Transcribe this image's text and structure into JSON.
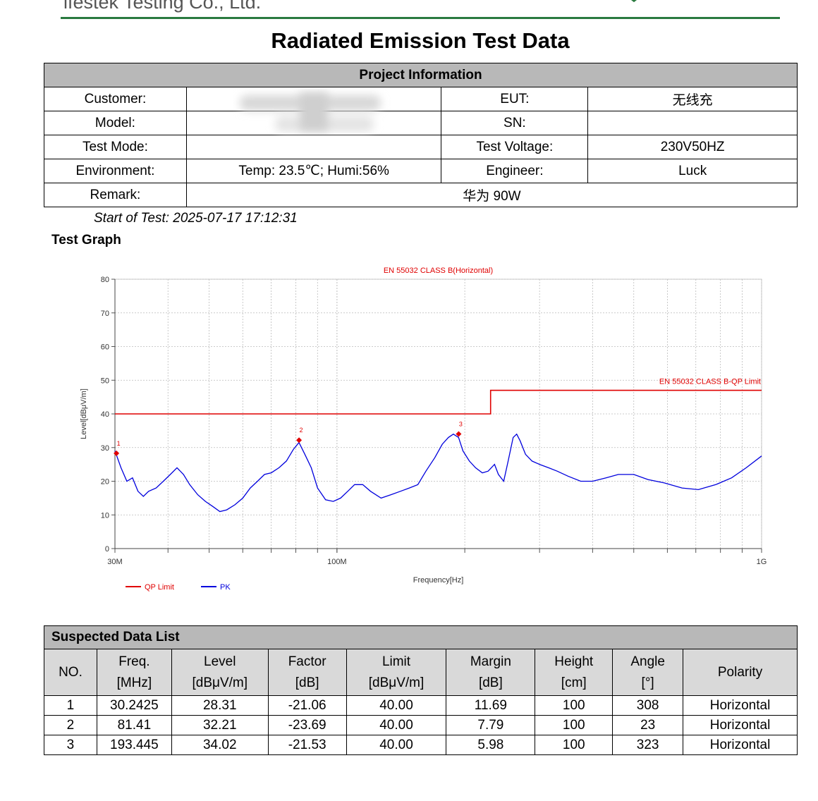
{
  "header": {
    "company": "ifestek Testing Co., Ltd.",
    "title": "Radiated Emission Test Data"
  },
  "project": {
    "heading": "Project Information",
    "customer_label": "Customer:",
    "customer_value": "",
    "eut_label": "EUT:",
    "eut_value": "无线充",
    "model_label": "Model:",
    "model_value": "",
    "sn_label": "SN:",
    "sn_value": "",
    "test_mode_label": "Test Mode:",
    "test_mode_value": "",
    "test_voltage_label": "Test Voltage:",
    "test_voltage_value": "230V50HZ",
    "environment_label": "Environment:",
    "environment_value": "Temp: 23.5℃; Humi:56%",
    "engineer_label": "Engineer:",
    "engineer_value": "Luck",
    "remark_label": "Remark:",
    "remark_value": "华为 90W"
  },
  "start_of_test": "Start of Test: 2025-07-17 17:12:31",
  "graph_title": "Test Graph",
  "chart_data": {
    "type": "line",
    "title": "EN 55032 CLASS B(Horizontal)",
    "xlabel": "Frequency[Hz]",
    "ylabel": "Level[dBμV/m]",
    "x_scale": "log",
    "xlim_mhz": [
      30,
      1000
    ],
    "ylim": [
      0,
      80
    ],
    "yticks": [
      0,
      10,
      20,
      30,
      40,
      50,
      60,
      70,
      80
    ],
    "x_tick_labels": [
      {
        "mhz": 30,
        "label": "30M"
      },
      {
        "mhz": 100,
        "label": "100M"
      },
      {
        "mhz": 1000,
        "label": "1G"
      }
    ],
    "limit_label": "EN 55032 CLASS B-QP Limit",
    "grid": true,
    "legend_position": "bottom-left",
    "series": [
      {
        "name": "QP Limit",
        "color": "#e00000",
        "points": [
          [
            30,
            40
          ],
          [
            230,
            40
          ],
          [
            230,
            47
          ],
          [
            1000,
            47
          ]
        ]
      },
      {
        "name": "PK",
        "color": "#0000dd",
        "points": [
          [
            30,
            29
          ],
          [
            31,
            24
          ],
          [
            32,
            20
          ],
          [
            33,
            21
          ],
          [
            34,
            17
          ],
          [
            35,
            15.5
          ],
          [
            36,
            17
          ],
          [
            37.5,
            18
          ],
          [
            39,
            20
          ],
          [
            40.5,
            22
          ],
          [
            42,
            24
          ],
          [
            43.5,
            22
          ],
          [
            45,
            19
          ],
          [
            47,
            16
          ],
          [
            49,
            14
          ],
          [
            51,
            12.5
          ],
          [
            53,
            11
          ],
          [
            55,
            11.5
          ],
          [
            57.5,
            13
          ],
          [
            60,
            15
          ],
          [
            62.5,
            18
          ],
          [
            65,
            20
          ],
          [
            67.5,
            22
          ],
          [
            70,
            22.5
          ],
          [
            73,
            24
          ],
          [
            76,
            26
          ],
          [
            79,
            29.5
          ],
          [
            81.4,
            31.5
          ],
          [
            84,
            28
          ],
          [
            87,
            24
          ],
          [
            90,
            18
          ],
          [
            94,
            14.5
          ],
          [
            98,
            14
          ],
          [
            102,
            15
          ],
          [
            106,
            17
          ],
          [
            110,
            19
          ],
          [
            115,
            19
          ],
          [
            120,
            17
          ],
          [
            127,
            15
          ],
          [
            134,
            16
          ],
          [
            141,
            17
          ],
          [
            148,
            18
          ],
          [
            155,
            19
          ],
          [
            162,
            23
          ],
          [
            170,
            27
          ],
          [
            177,
            31
          ],
          [
            183,
            33
          ],
          [
            188,
            34
          ],
          [
            193.4,
            33
          ],
          [
            198,
            29
          ],
          [
            205,
            26
          ],
          [
            212,
            24
          ],
          [
            220,
            22.5
          ],
          [
            227,
            23
          ],
          [
            235,
            25
          ],
          [
            240,
            22
          ],
          [
            247,
            20
          ],
          [
            253,
            26
          ],
          [
            260,
            33
          ],
          [
            265,
            34
          ],
          [
            270,
            32
          ],
          [
            278,
            28
          ],
          [
            288,
            26
          ],
          [
            300,
            25
          ],
          [
            315,
            24
          ],
          [
            330,
            23
          ],
          [
            350,
            21.5
          ],
          [
            375,
            20
          ],
          [
            400,
            20
          ],
          [
            430,
            21
          ],
          [
            460,
            22
          ],
          [
            500,
            22
          ],
          [
            540,
            20.5
          ],
          [
            590,
            19.5
          ],
          [
            650,
            18
          ],
          [
            710,
            17.5
          ],
          [
            780,
            19
          ],
          [
            850,
            21
          ],
          [
            920,
            24
          ],
          [
            1000,
            27.5
          ]
        ]
      }
    ],
    "markers": [
      {
        "label": "1",
        "freq_mhz": 30.2425,
        "level": 28.31
      },
      {
        "label": "2",
        "freq_mhz": 81.41,
        "level": 32.21
      },
      {
        "label": "3",
        "freq_mhz": 193.445,
        "level": 34.02
      }
    ]
  },
  "suspected": {
    "heading": "Suspected Data List",
    "columns": [
      {
        "line1": "NO.",
        "line2": ""
      },
      {
        "line1": "Freq.",
        "line2": "[MHz]"
      },
      {
        "line1": "Level",
        "line2": "[dBμV/m]"
      },
      {
        "line1": "Factor",
        "line2": "[dB]"
      },
      {
        "line1": "Limit",
        "line2": "[dBμV/m]"
      },
      {
        "line1": "Margin",
        "line2": "[dB]"
      },
      {
        "line1": "Height",
        "line2": "[cm]"
      },
      {
        "line1": "Angle",
        "line2": "[°]"
      },
      {
        "line1": "Polarity",
        "line2": ""
      }
    ],
    "rows": [
      [
        "1",
        "30.2425",
        "28.31",
        "-21.06",
        "40.00",
        "11.69",
        "100",
        "308",
        "Horizontal"
      ],
      [
        "2",
        "81.41",
        "32.21",
        "-23.69",
        "40.00",
        "7.79",
        "100",
        "23",
        "Horizontal"
      ],
      [
        "3",
        "193.445",
        "34.02",
        "-21.53",
        "40.00",
        "5.98",
        "100",
        "323",
        "Horizontal"
      ]
    ]
  }
}
